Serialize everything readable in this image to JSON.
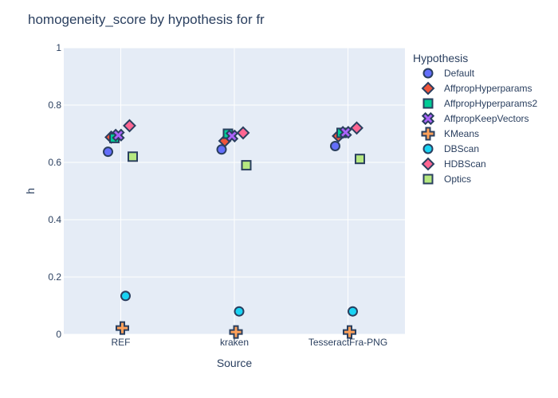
{
  "chart_data": {
    "type": "scatter",
    "title": "homogeneity_score by hypothesis for fr",
    "xlabel": "Source",
    "ylabel": "h",
    "categories": [
      "REF",
      "kraken",
      "TesseractFra-PNG"
    ],
    "ylim": [
      0,
      1
    ],
    "yticks": [
      "0",
      "0.2",
      "0.4",
      "0.6",
      "0.8",
      "1"
    ],
    "ytick_values": [
      0,
      0.2,
      0.4,
      0.6,
      0.8,
      1
    ],
    "grid": true,
    "legend_title": "Hypothesis",
    "legend_position": "right",
    "series": [
      {
        "name": "Default",
        "symbol": "circle",
        "color": "#636efa",
        "values": [
          0.637,
          0.645,
          0.657
        ]
      },
      {
        "name": "AffpropHyperparams",
        "symbol": "diamond",
        "color": "#EF553B",
        "values": [
          0.688,
          0.675,
          0.692
        ]
      },
      {
        "name": "AffpropHyperparams2",
        "symbol": "square",
        "color": "#00cc96",
        "values": [
          0.685,
          0.7,
          0.703
        ]
      },
      {
        "name": "AffpropKeepVectors",
        "symbol": "x",
        "color": "#ab63fa",
        "values": [
          0.695,
          0.692,
          0.705
        ]
      },
      {
        "name": "KMeans",
        "symbol": "cross",
        "color": "#FFA15A",
        "values": [
          0.022,
          0.008,
          0.008
        ]
      },
      {
        "name": "DBScan",
        "symbol": "circle",
        "color": "#19d3f3",
        "values": [
          0.134,
          0.08,
          0.08
        ]
      },
      {
        "name": "HDBScan",
        "symbol": "diamond",
        "color": "#FF6692",
        "values": [
          0.728,
          0.703,
          0.72
        ]
      },
      {
        "name": "Optics",
        "symbol": "square",
        "color": "#B6E880",
        "values": [
          0.62,
          0.59,
          0.612
        ]
      }
    ]
  }
}
